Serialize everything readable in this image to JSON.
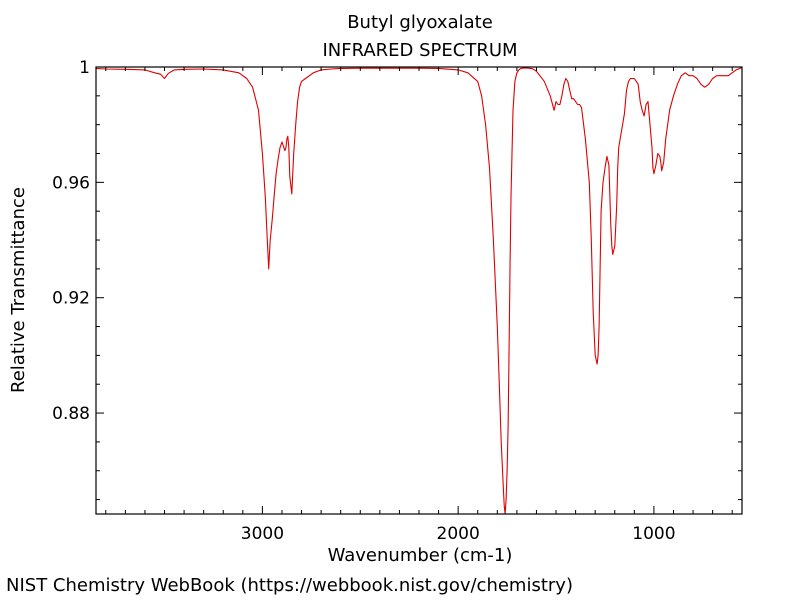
{
  "chart_data": {
    "type": "line",
    "title": "Butyl glyoxalate",
    "subtitle": "INFRARED SPECTRUM",
    "xlabel": "Wavenumber (cm-1)",
    "ylabel": "Relative Transmittance",
    "xlim": [
      3850,
      550
    ],
    "ylim": [
      0.845,
      1.0
    ],
    "x_reversed": true,
    "xticks": [
      3000,
      2000,
      1000
    ],
    "xtick_labels": [
      "3000",
      "2000",
      "1000"
    ],
    "yticks": [
      1.0,
      0.96,
      0.92,
      0.88
    ],
    "ytick_labels": [
      "1",
      "0.96",
      "0.92",
      "0.88"
    ],
    "grid": false,
    "series": [
      {
        "color": "#e00000",
        "x": [
          3850,
          3800,
          3700,
          3600,
          3550,
          3520,
          3500,
          3480,
          3450,
          3400,
          3300,
          3200,
          3120,
          3080,
          3050,
          3020,
          3000,
          2985,
          2975,
          2968,
          2960,
          2950,
          2940,
          2930,
          2920,
          2910,
          2900,
          2890,
          2885,
          2880,
          2875,
          2870,
          2865,
          2860,
          2850,
          2840,
          2830,
          2820,
          2810,
          2800,
          2780,
          2760,
          2740,
          2700,
          2650,
          2600,
          2500,
          2400,
          2300,
          2200,
          2100,
          2000,
          1950,
          1900,
          1880,
          1860,
          1840,
          1820,
          1800,
          1790,
          1780,
          1770,
          1765,
          1760,
          1755,
          1750,
          1745,
          1740,
          1735,
          1730,
          1720,
          1710,
          1700,
          1690,
          1680,
          1660,
          1640,
          1620,
          1600,
          1560,
          1530,
          1510,
          1500,
          1490,
          1480,
          1470,
          1460,
          1450,
          1440,
          1430,
          1420,
          1410,
          1400,
          1390,
          1380,
          1370,
          1350,
          1330,
          1320,
          1310,
          1300,
          1290,
          1285,
          1280,
          1275,
          1270,
          1260,
          1250,
          1240,
          1230,
          1225,
          1220,
          1215,
          1210,
          1200,
          1190,
          1185,
          1180,
          1170,
          1160,
          1150,
          1140,
          1130,
          1120,
          1100,
          1080,
          1070,
          1060,
          1050,
          1040,
          1030,
          1020,
          1010,
          1005,
          1000,
          990,
          980,
          970,
          965,
          960,
          950,
          940,
          920,
          900,
          880,
          860,
          840,
          820,
          800,
          780,
          760,
          740,
          720,
          700,
          680,
          650,
          620,
          600,
          580,
          560,
          550
        ],
        "y": [
          0.9995,
          0.9993,
          0.9992,
          0.999,
          0.998,
          0.9975,
          0.996,
          0.9978,
          0.999,
          0.9992,
          0.9993,
          0.999,
          0.998,
          0.996,
          0.993,
          0.985,
          0.97,
          0.955,
          0.94,
          0.93,
          0.94,
          0.947,
          0.955,
          0.963,
          0.968,
          0.972,
          0.974,
          0.972,
          0.971,
          0.972,
          0.975,
          0.976,
          0.972,
          0.962,
          0.956,
          0.97,
          0.98,
          0.988,
          0.993,
          0.995,
          0.996,
          0.997,
          0.998,
          0.999,
          0.9993,
          0.9995,
          0.9996,
          0.9996,
          0.9996,
          0.9996,
          0.9995,
          0.999,
          0.998,
          0.995,
          0.99,
          0.98,
          0.965,
          0.94,
          0.91,
          0.89,
          0.87,
          0.855,
          0.848,
          0.845,
          0.85,
          0.86,
          0.875,
          0.9,
          0.93,
          0.955,
          0.985,
          0.995,
          0.998,
          0.999,
          0.9995,
          0.9997,
          0.9996,
          0.9994,
          0.9985,
          0.995,
          0.99,
          0.985,
          0.988,
          0.987,
          0.987,
          0.99,
          0.994,
          0.996,
          0.995,
          0.992,
          0.989,
          0.989,
          0.988,
          0.987,
          0.987,
          0.986,
          0.975,
          0.96,
          0.94,
          0.915,
          0.9,
          0.897,
          0.9,
          0.91,
          0.93,
          0.95,
          0.96,
          0.965,
          0.969,
          0.966,
          0.955,
          0.945,
          0.938,
          0.935,
          0.938,
          0.952,
          0.965,
          0.972,
          0.976,
          0.98,
          0.984,
          0.992,
          0.995,
          0.996,
          0.996,
          0.994,
          0.988,
          0.985,
          0.983,
          0.987,
          0.988,
          0.98,
          0.972,
          0.965,
          0.963,
          0.966,
          0.97,
          0.969,
          0.967,
          0.964,
          0.967,
          0.975,
          0.985,
          0.99,
          0.994,
          0.997,
          0.998,
          0.997,
          0.997,
          0.996,
          0.994,
          0.993,
          0.994,
          0.996,
          0.997,
          0.997,
          0.997,
          0.998,
          0.999,
          0.9995,
          1.0
        ]
      }
    ]
  },
  "footer": {
    "credit": "NIST Chemistry WebBook (https://webbook.nist.gov/chemistry)"
  }
}
